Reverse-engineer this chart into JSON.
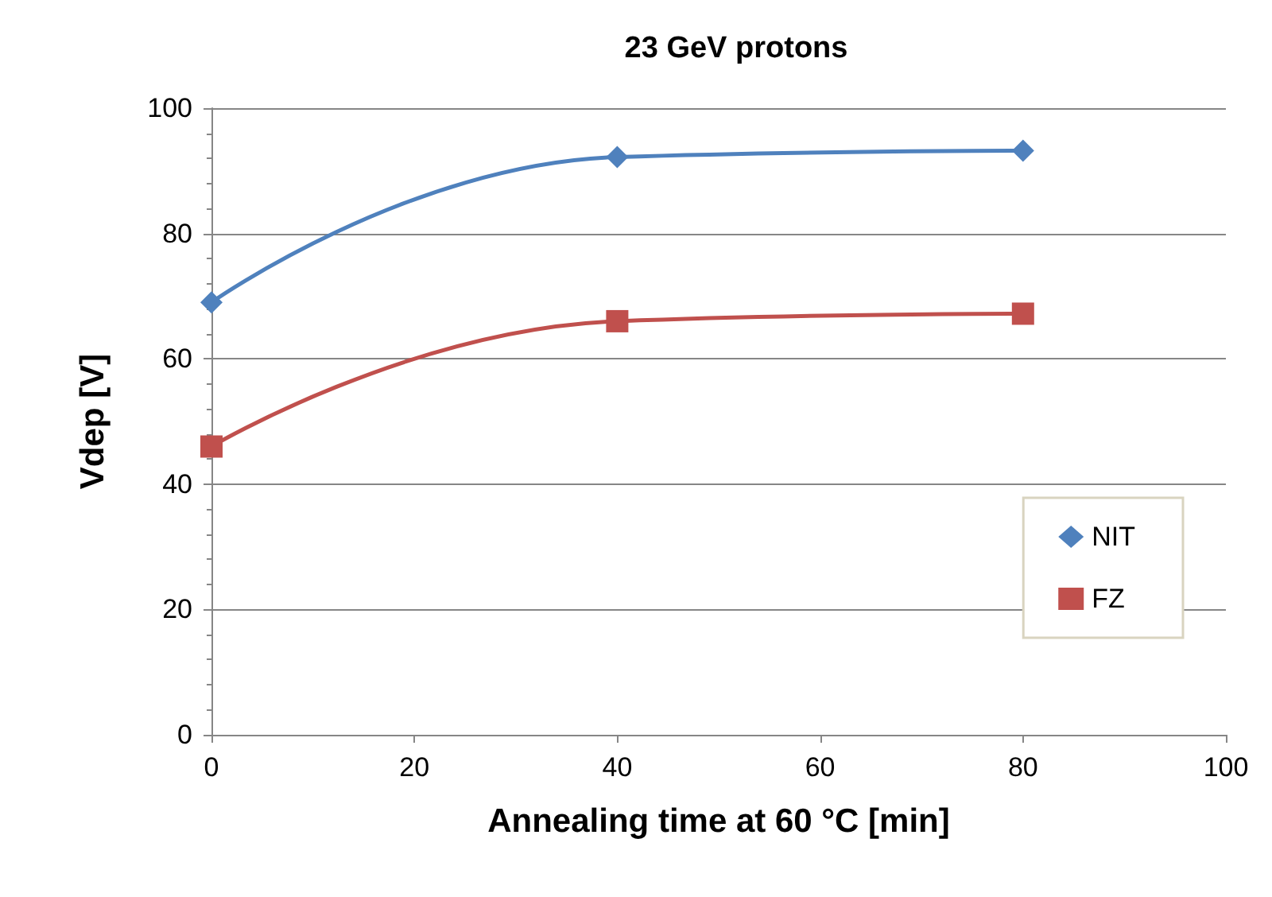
{
  "chart_data": {
    "type": "line",
    "title": "23 GeV protons",
    "xlabel": "Annealing time at 60 °C [min]",
    "ylabel": "Vdep [V]",
    "x": [
      0,
      40,
      80
    ],
    "series": [
      {
        "name": "NIT",
        "color": "#4f81bd",
        "values": [
          69,
          92.2,
          93.2
        ],
        "marker": "diamond"
      },
      {
        "name": "FZ",
        "color": "#c0504d",
        "values": [
          46,
          66,
          67.2
        ],
        "marker": "square"
      }
    ],
    "xlim": [
      0,
      100
    ],
    "xticks": [
      0,
      20,
      40,
      60,
      80,
      100
    ],
    "ylim": [
      0,
      100
    ],
    "yticks": [
      0,
      20,
      40,
      60,
      80,
      100
    ],
    "grid": "y",
    "legend": "right",
    "line_style": "solid"
  }
}
